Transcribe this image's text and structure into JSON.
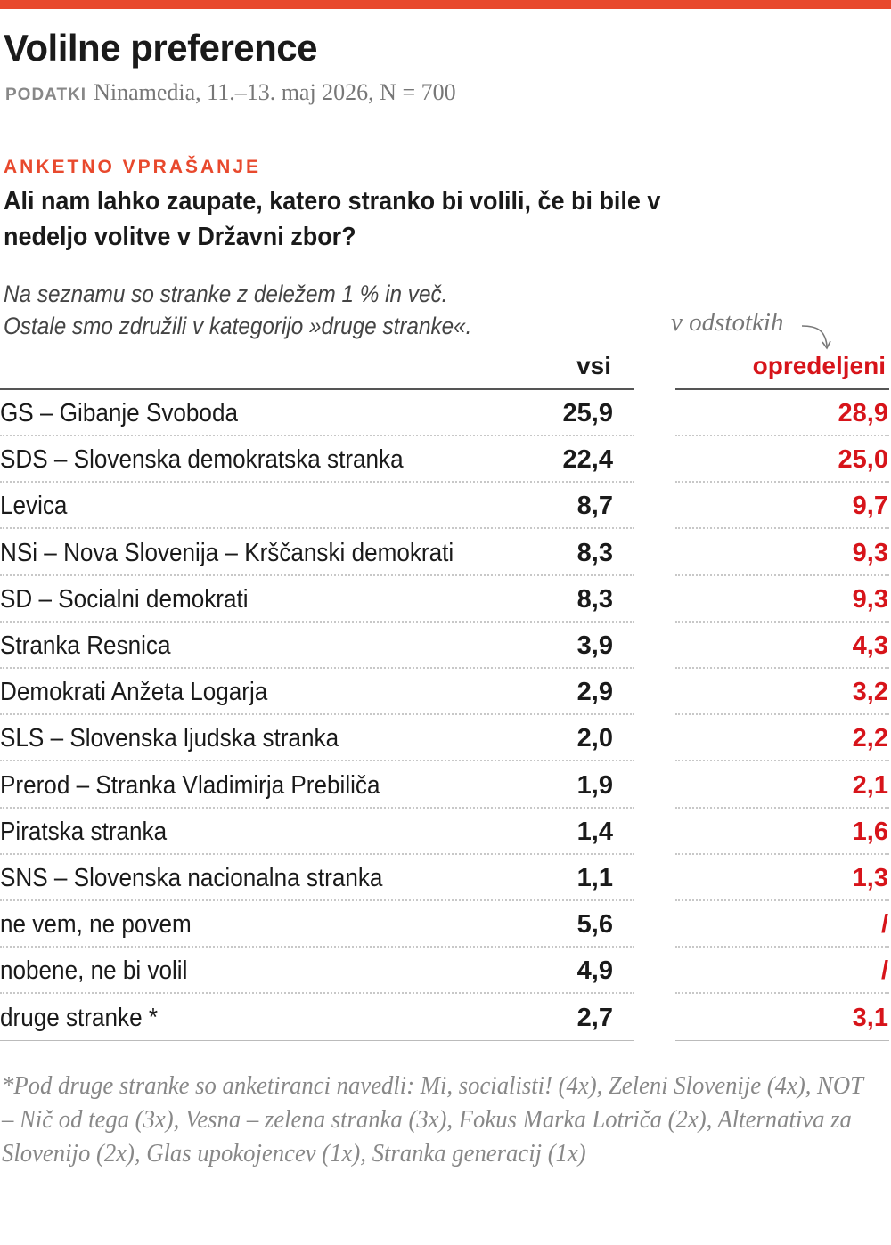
{
  "title": "Volilne preference",
  "source": {
    "label": "PODATKI",
    "text": "Ninamedia, 11.–13. maj 2026, N = 700"
  },
  "question_label": "ANKETNO VPRAŠANJE",
  "question": "Ali nam lahko zaupate, katero stranko bi volili, če bi bile v nedeljo volitve v Državni zbor?",
  "note": [
    "Na seznamu so stranke z deležem 1 % in več.",
    "Ostale smo združili v kategorijo »druge stranke«."
  ],
  "unit_label": "v odstotkih",
  "colors": {
    "accent": "#e8492d",
    "opredeljeni": "#d7141a"
  },
  "chart_data": {
    "type": "table",
    "columns": [
      "vsi",
      "opredeljeni"
    ],
    "rows": [
      {
        "name": "GS – Gibanje Svoboda",
        "vsi": "25,9",
        "opredeljeni": "28,9"
      },
      {
        "name": "SDS – Slovenska demokratska stranka",
        "vsi": "22,4",
        "opredeljeni": "25,0"
      },
      {
        "name": "Levica",
        "vsi": "8,7",
        "opredeljeni": "9,7"
      },
      {
        "name": "NSi – Nova Slovenija – Krščanski demokrati",
        "vsi": "8,3",
        "opredeljeni": "9,3"
      },
      {
        "name": "SD – Socialni demokrati",
        "vsi": "8,3",
        "opredeljeni": "9,3"
      },
      {
        "name": "Stranka Resnica",
        "vsi": "3,9",
        "opredeljeni": "4,3"
      },
      {
        "name": "Demokrati Anžeta Logarja",
        "vsi": "2,9",
        "opredeljeni": "3,2"
      },
      {
        "name": "SLS – Slovenska ljudska stranka",
        "vsi": "2,0",
        "opredeljeni": "2,2"
      },
      {
        "name": "Prerod – Stranka Vladimirja Prebiliča",
        "vsi": "1,9",
        "opredeljeni": "2,1"
      },
      {
        "name": "Piratska stranka",
        "vsi": "1,4",
        "opredeljeni": "1,6"
      },
      {
        "name": "SNS – Slovenska nacionalna stranka",
        "vsi": "1,1",
        "opredeljeni": "1,3"
      },
      {
        "name": "ne vem, ne povem",
        "vsi": "5,6",
        "opredeljeni": "/"
      },
      {
        "name": "nobene, ne bi volil",
        "vsi": "4,9",
        "opredeljeni": "/"
      },
      {
        "name": "druge stranke *",
        "vsi": "2,7",
        "opredeljeni": "3,1"
      }
    ]
  },
  "footnote": "*Pod druge stranke so anketiranci navedli: Mi, socialisti! (4x), Zeleni Slovenije (4x), NOT – Nič od tega (3x), Vesna – zelena stranka (3x), Fokus Marka Lotriča (2x), Alternativa za Slovenijo (2x), Glas upokojencev (1x), Stranka generacij (1x)"
}
